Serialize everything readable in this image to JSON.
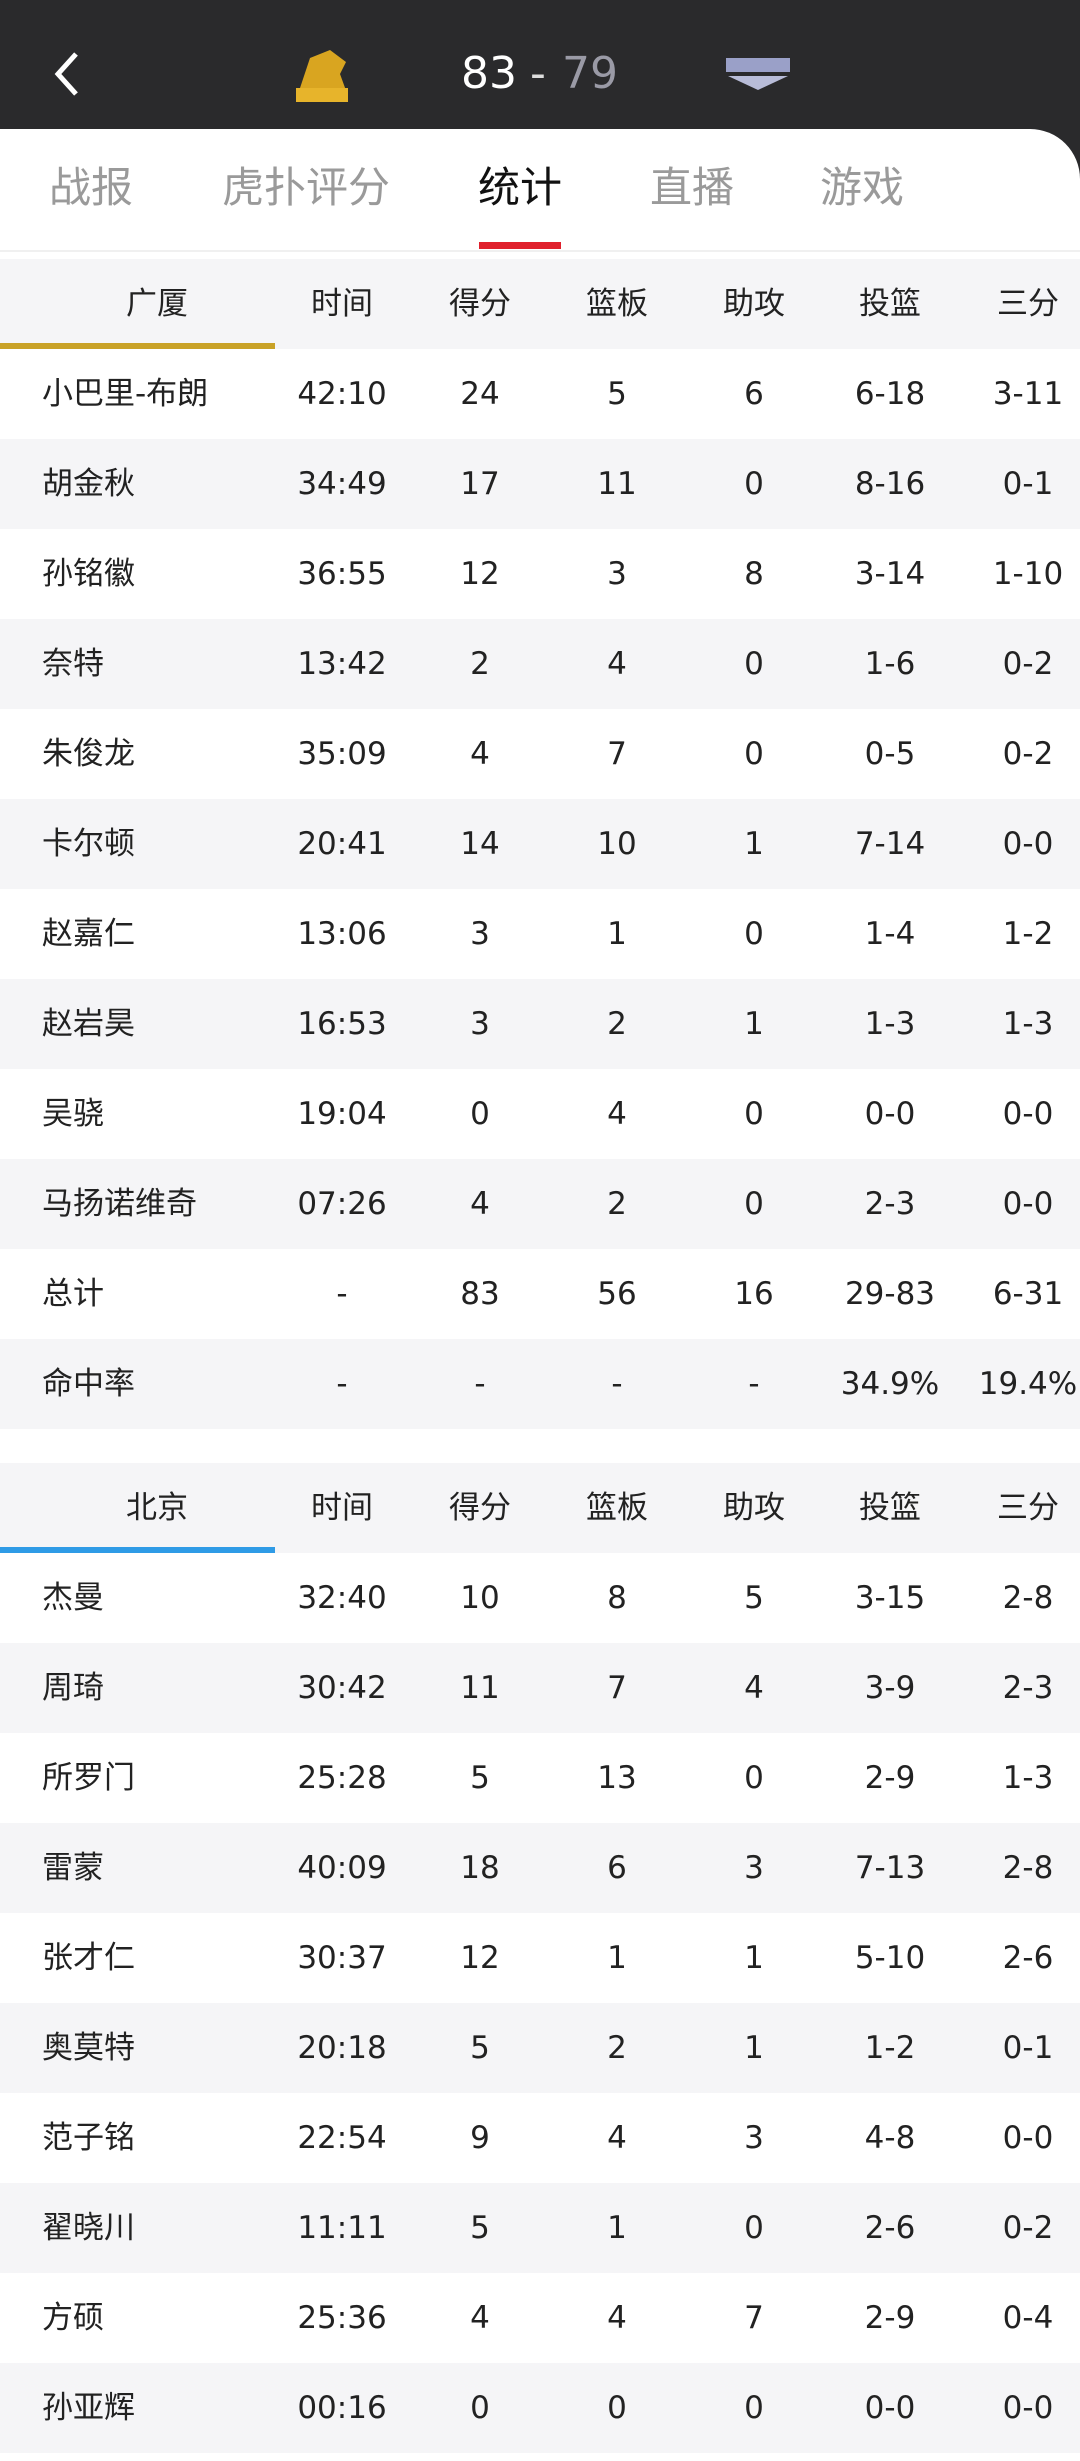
{
  "header": {
    "home_score": "83",
    "separator": "-",
    "away_score": "79"
  },
  "tabs": [
    "战报",
    "虎扑评分",
    "统计",
    "直播",
    "游戏"
  ],
  "tables": [
    {
      "team": "广厦",
      "columns": [
        "时间",
        "得分",
        "篮板",
        "助攻",
        "投篮",
        "三分"
      ],
      "rows": [
        [
          "小巴里-布朗",
          "42:10",
          "24",
          "5",
          "6",
          "6-18",
          "3-11"
        ],
        [
          "胡金秋",
          "34:49",
          "17",
          "11",
          "0",
          "8-16",
          "0-1"
        ],
        [
          "孙铭徽",
          "36:55",
          "12",
          "3",
          "8",
          "3-14",
          "1-10"
        ],
        [
          "奈特",
          "13:42",
          "2",
          "4",
          "0",
          "1-6",
          "0-2"
        ],
        [
          "朱俊龙",
          "35:09",
          "4",
          "7",
          "0",
          "0-5",
          "0-2"
        ],
        [
          "卡尔顿",
          "20:41",
          "14",
          "10",
          "1",
          "7-14",
          "0-0"
        ],
        [
          "赵嘉仁",
          "13:06",
          "3",
          "1",
          "0",
          "1-4",
          "1-2"
        ],
        [
          "赵岩昊",
          "16:53",
          "3",
          "2",
          "1",
          "1-3",
          "1-3"
        ],
        [
          "吴骁",
          "19:04",
          "0",
          "4",
          "0",
          "0-0",
          "0-0"
        ],
        [
          "马扬诺维奇",
          "07:26",
          "4",
          "2",
          "0",
          "2-3",
          "0-0"
        ],
        [
          "总计",
          "-",
          "83",
          "56",
          "16",
          "29-83",
          "6-31"
        ],
        [
          "命中率",
          "-",
          "-",
          "-",
          "-",
          "34.9%",
          "19.4%"
        ]
      ]
    },
    {
      "team": "北京",
      "columns": [
        "时间",
        "得分",
        "篮板",
        "助攻",
        "投篮",
        "三分"
      ],
      "rows": [
        [
          "杰曼",
          "32:40",
          "10",
          "8",
          "5",
          "3-15",
          "2-8"
        ],
        [
          "周琦",
          "30:42",
          "11",
          "7",
          "4",
          "3-9",
          "2-3"
        ],
        [
          "所罗门",
          "25:28",
          "5",
          "13",
          "0",
          "2-9",
          "1-3"
        ],
        [
          "雷蒙",
          "40:09",
          "18",
          "6",
          "3",
          "7-13",
          "2-8"
        ],
        [
          "张才仁",
          "30:37",
          "12",
          "1",
          "1",
          "5-10",
          "2-6"
        ],
        [
          "奥莫特",
          "20:18",
          "5",
          "2",
          "1",
          "1-2",
          "0-1"
        ],
        [
          "范子铭",
          "22:54",
          "9",
          "4",
          "3",
          "4-8",
          "0-0"
        ],
        [
          "翟晓川",
          "11:11",
          "5",
          "1",
          "0",
          "2-6",
          "0-2"
        ],
        [
          "方硕",
          "25:36",
          "4",
          "4",
          "7",
          "2-9",
          "0-4"
        ],
        [
          "孙亚辉",
          "00:16",
          "0",
          "0",
          "0",
          "0-0",
          "0-0"
        ]
      ]
    }
  ]
}
